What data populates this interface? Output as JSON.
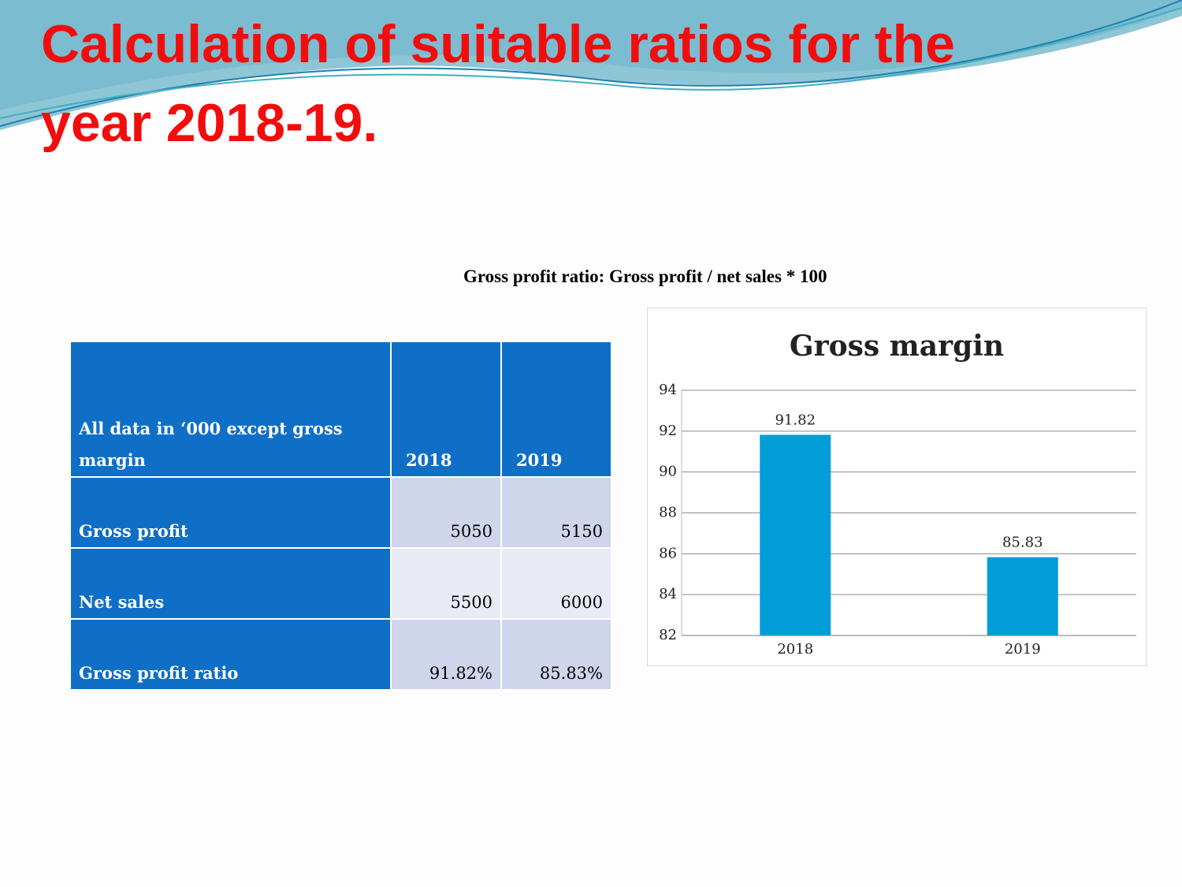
{
  "title": "Calculation of suitable ratios for the year 2018-19.",
  "formula": "Gross profit ratio: Gross profit / net sales * 100",
  "table": {
    "header": [
      "All data in ‘000 except gross margin",
      "2018",
      "2019"
    ],
    "rows": [
      [
        "Gross profit",
        5050,
        5150
      ],
      [
        "Net sales",
        5500,
        6000
      ],
      [
        "Gross profit ratio",
        "91.82%",
        "85.83%"
      ]
    ]
  },
  "chart_data": {
    "type": "bar",
    "title": "Gross margin",
    "categories": [
      "2018",
      "2019"
    ],
    "values": [
      91.82,
      85.83
    ],
    "color": "#009dd9",
    "ylim": [
      82,
      94
    ],
    "yticks": [
      82,
      84,
      86,
      88,
      90,
      92,
      94
    ],
    "grid": true
  }
}
